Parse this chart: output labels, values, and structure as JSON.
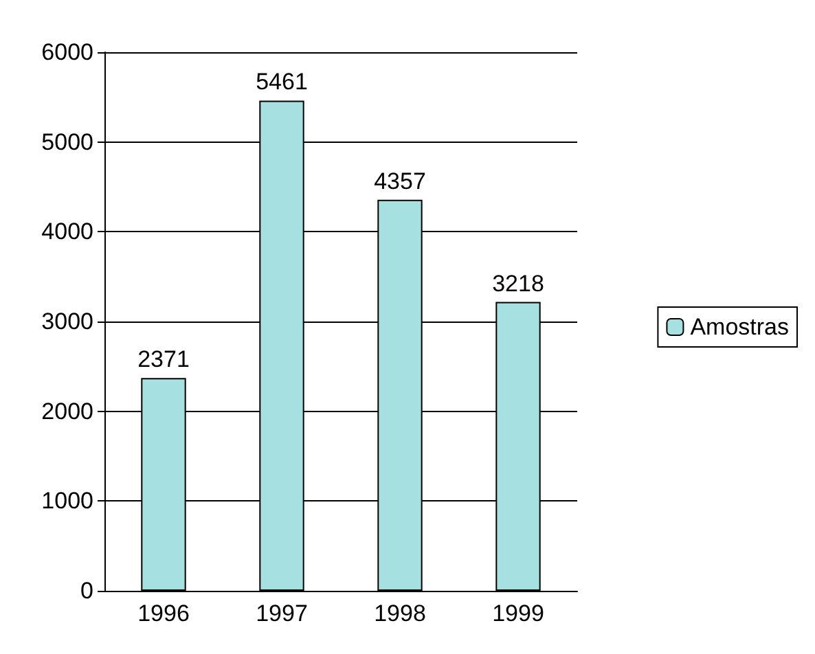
{
  "chart_data": {
    "type": "bar",
    "categories": [
      "1996",
      "1997",
      "1998",
      "1999"
    ],
    "series": [
      {
        "name": "Amostras",
        "color": "#a6e0e0",
        "values": [
          2371,
          5461,
          4357,
          3218
        ]
      }
    ],
    "ylim": [
      0,
      6000
    ],
    "yticks": [
      0,
      1000,
      2000,
      3000,
      4000,
      5000,
      6000
    ],
    "grid": "y",
    "legend": "right",
    "data_labels": true
  }
}
